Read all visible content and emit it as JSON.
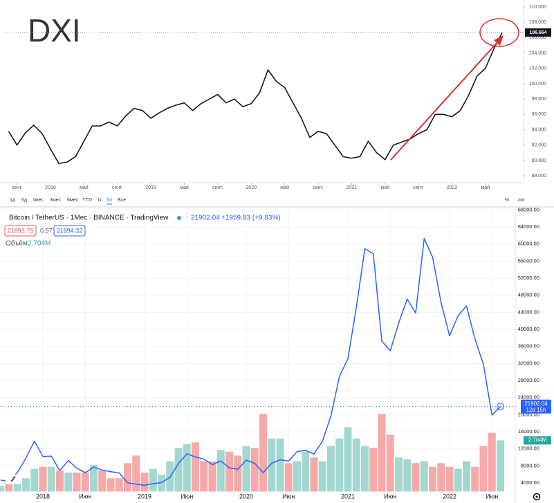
{
  "chart_data": [
    {
      "type": "line",
      "title": "DXI",
      "color": "#131722",
      "x": [
        "2017-08",
        "2017-09",
        "2017-10",
        "2017-11",
        "2017-12",
        "2018-01",
        "2018-02",
        "2018-03",
        "2018-04",
        "2018-05",
        "2018-06",
        "2018-07",
        "2018-08",
        "2018-09",
        "2018-10",
        "2018-11",
        "2018-12",
        "2019-01",
        "2019-02",
        "2019-03",
        "2019-04",
        "2019-05",
        "2019-06",
        "2019-07",
        "2019-08",
        "2019-09",
        "2019-10",
        "2019-11",
        "2019-12",
        "2020-01",
        "2020-02",
        "2020-03",
        "2020-04",
        "2020-05",
        "2020-06",
        "2020-07",
        "2020-08",
        "2020-09",
        "2020-10",
        "2020-11",
        "2020-12",
        "2021-01",
        "2021-02",
        "2021-03",
        "2021-04",
        "2021-05",
        "2021-06",
        "2021-07",
        "2021-08",
        "2021-09",
        "2021-10",
        "2021-11",
        "2021-12",
        "2022-01",
        "2022-02",
        "2022-03",
        "2022-04",
        "2022-05",
        "2022-06",
        "2022-07"
      ],
      "values": [
        93.8,
        92.0,
        93.6,
        94.6,
        93.5,
        91.5,
        89.6,
        89.8,
        90.5,
        92.5,
        94.5,
        94.5,
        95.0,
        94.5,
        95.8,
        96.8,
        96.5,
        95.5,
        96.2,
        96.8,
        97.2,
        97.5,
        96.5,
        97.4,
        98.0,
        98.6,
        97.5,
        98.0,
        97.0,
        97.4,
        98.8,
        101.8,
        100.3,
        99.5,
        97.5,
        95.5,
        93.0,
        93.8,
        93.5,
        92.0,
        90.5,
        90.3,
        90.5,
        92.5,
        91.0,
        90.1,
        92.0,
        92.4,
        92.8,
        93.5,
        94.0,
        96.0,
        96.0,
        95.7,
        96.5,
        98.5,
        101.0,
        102.0,
        104.5,
        106.664
      ],
      "xlim": [
        "2017-08",
        "2022-07"
      ],
      "xticks": [
        {
          "value": "2017-09",
          "label": "сент."
        },
        {
          "value": "2018-01",
          "label": "2018"
        },
        {
          "value": "2018-05",
          "label": "май"
        },
        {
          "value": "2018-09",
          "label": "сент."
        },
        {
          "value": "2019-01",
          "label": "2019"
        },
        {
          "value": "2019-05",
          "label": "май"
        },
        {
          "value": "2019-09",
          "label": "сент."
        },
        {
          "value": "2020-01",
          "label": "2020"
        },
        {
          "value": "2020-05",
          "label": "май"
        },
        {
          "value": "2020-09",
          "label": "сент."
        },
        {
          "value": "2021-01",
          "label": "2021"
        },
        {
          "value": "2021-05",
          "label": "май"
        },
        {
          "value": "2021-09",
          "label": "сент."
        },
        {
          "value": "2022-01",
          "label": "2022"
        },
        {
          "value": "2022-05",
          "label": "май"
        }
      ],
      "ylim": [
        87.2,
        110.9
      ],
      "yticks": [
        {
          "value": 88,
          "label": "88.000"
        },
        {
          "value": 90,
          "label": "90.000"
        },
        {
          "value": 92,
          "label": "92.000"
        },
        {
          "value": 94,
          "label": "94.000"
        },
        {
          "value": 96,
          "label": "96.000"
        },
        {
          "value": 98,
          "label": "98.000"
        },
        {
          "value": 100,
          "label": "100.000"
        },
        {
          "value": 102,
          "label": "102.000"
        },
        {
          "value": 104,
          "label": "104.000"
        },
        {
          "value": 106,
          "label": "106.000"
        },
        {
          "value": 108,
          "label": "108.000"
        },
        {
          "value": 110,
          "label": "110.000"
        }
      ],
      "buttons": [
        "1д",
        "5д",
        "1мес",
        "3мес",
        "6мес",
        "YTD",
        "1г",
        "5л",
        "Все"
      ],
      "active_button": 7,
      "scale_options": [
        "%",
        "лог"
      ]
    },
    {
      "type": "line",
      "title": "Bitcoin / TetherUS · 1Мес · BINANCE · TradingView",
      "color": "#2962ff",
      "last_price": "21902.04",
      "change": "+1959.83 (+9.83%)",
      "bid": "21893.75",
      "spread": "0.57",
      "ask": "21894.32",
      "countdown": "12d 15h",
      "values": [
        4700,
        4340,
        6470,
        9840,
        13800,
        10200,
        10300,
        6900,
        9250,
        7500,
        6400,
        7730,
        7030,
        6630,
        6370,
        4040,
        3740,
        3460,
        3830,
        4100,
        5330,
        8570,
        10850,
        10090,
        9600,
        8300,
        9150,
        7570,
        7200,
        9350,
        8600,
        6420,
        8620,
        9450,
        9140,
        11350,
        11660,
        10780,
        13800,
        19700,
        29000,
        33100,
        45200,
        58900,
        57700,
        37300,
        35000,
        41500,
        47100,
        43800,
        61300,
        56900,
        46200,
        38500,
        43200,
        45500,
        37700,
        31800,
        19900,
        21902.04
      ],
      "xlim": [
        "2017-08",
        "2022-07"
      ],
      "xticks": [
        {
          "value": "2018-01",
          "label": "2018"
        },
        {
          "value": "2018-06",
          "label": "Июн"
        },
        {
          "value": "2019-01",
          "label": "2019"
        },
        {
          "value": "2019-06",
          "label": "Июн"
        },
        {
          "value": "2020-01",
          "label": "2020"
        },
        {
          "value": "2020-06",
          "label": "Июн"
        },
        {
          "value": "2021-01",
          "label": "2021"
        },
        {
          "value": "2021-06",
          "label": "Июн"
        },
        {
          "value": "2022-01",
          "label": "2022"
        },
        {
          "value": "2022-06",
          "label": "Июн"
        }
      ],
      "ylim": [
        2000,
        68000
      ],
      "yticks": [
        {
          "value": 4000,
          "label": "4000.00"
        },
        {
          "value": 8000,
          "label": "8000.00"
        },
        {
          "value": 12000,
          "label": "12000.00"
        },
        {
          "value": 16000,
          "label": "16000.00"
        },
        {
          "value": 20000,
          "label": "20000.00"
        },
        {
          "value": 24000,
          "label": "24000.00"
        },
        {
          "value": 28000,
          "label": "28000.00"
        },
        {
          "value": 32000,
          "label": "32000.00"
        },
        {
          "value": 36000,
          "label": "36000.00"
        },
        {
          "value": 40000,
          "label": "40000.00"
        },
        {
          "value": 44000,
          "label": "44000.00"
        },
        {
          "value": 48000,
          "label": "48000.00"
        },
        {
          "value": 52000,
          "label": "52000.00"
        },
        {
          "value": 56000,
          "label": "56000.00"
        },
        {
          "value": 60000,
          "label": "60000.00"
        },
        {
          "value": 64000,
          "label": "64000.00"
        },
        {
          "value": 68000,
          "label": "68000.00"
        }
      ],
      "grid": true,
      "volume": {
        "type": "bar",
        "title": "Объём",
        "last_label": "2.704M",
        "up_color": "#a3d8d0",
        "down_color": "#f5a9a9",
        "ylim": [
          0,
          15
        ],
        "values": [
          0.3,
          0.5,
          0.5,
          0.7,
          1.2,
          1.3,
          1.3,
          1.1,
          1.0,
          1.0,
          1.0,
          1.4,
          1.1,
          0.7,
          0.7,
          1.5,
          1.9,
          1.0,
          1.2,
          0.9,
          1.6,
          2.3,
          2.5,
          2.6,
          1.6,
          1.6,
          2.2,
          2.1,
          1.9,
          2.4,
          2.3,
          4.1,
          2.8,
          2.8,
          1.5,
          1.6,
          2.1,
          1.8,
          1.6,
          2.4,
          2.8,
          3.4,
          2.8,
          2.4,
          2.3,
          4.1,
          3.0,
          1.8,
          1.7,
          1.5,
          1.6,
          1.3,
          1.5,
          1.3,
          1.2,
          1.6,
          1.3,
          2.4,
          3.1,
          2.704
        ]
      }
    }
  ]
}
